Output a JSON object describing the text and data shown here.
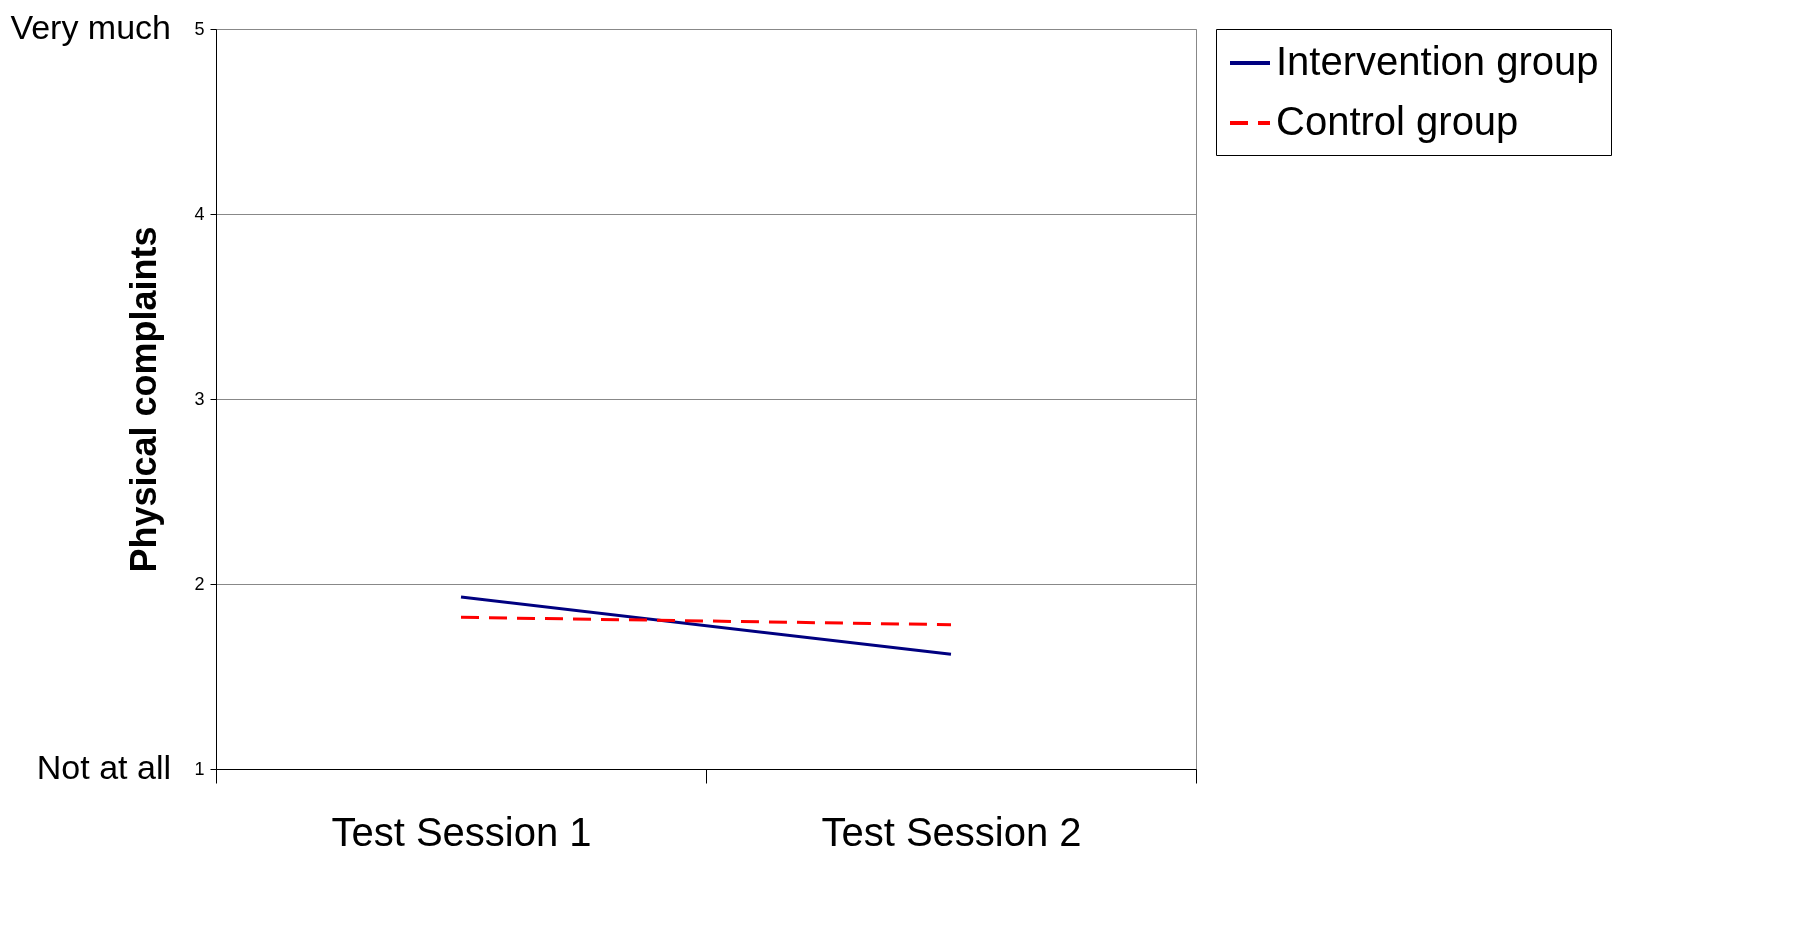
{
  "chart_data": {
    "type": "line",
    "ylabel": "Physical complaints",
    "categories": [
      "Test Session 1",
      "Test Session 2"
    ],
    "series": [
      {
        "name": "Intervention group",
        "color": "#000080",
        "line_style": "solid",
        "values": [
          1.93,
          1.62
        ]
      },
      {
        "name": "Control group",
        "color": "#ff0000",
        "line_style": "dashed",
        "values": [
          1.82,
          1.78
        ]
      }
    ],
    "ylim": [
      1,
      5
    ],
    "yticks": [
      1,
      2,
      3,
      4,
      5
    ],
    "grid": "y",
    "legend": "right",
    "marker": "none",
    "annotations": [
      "Very much",
      "Not at all"
    ]
  }
}
